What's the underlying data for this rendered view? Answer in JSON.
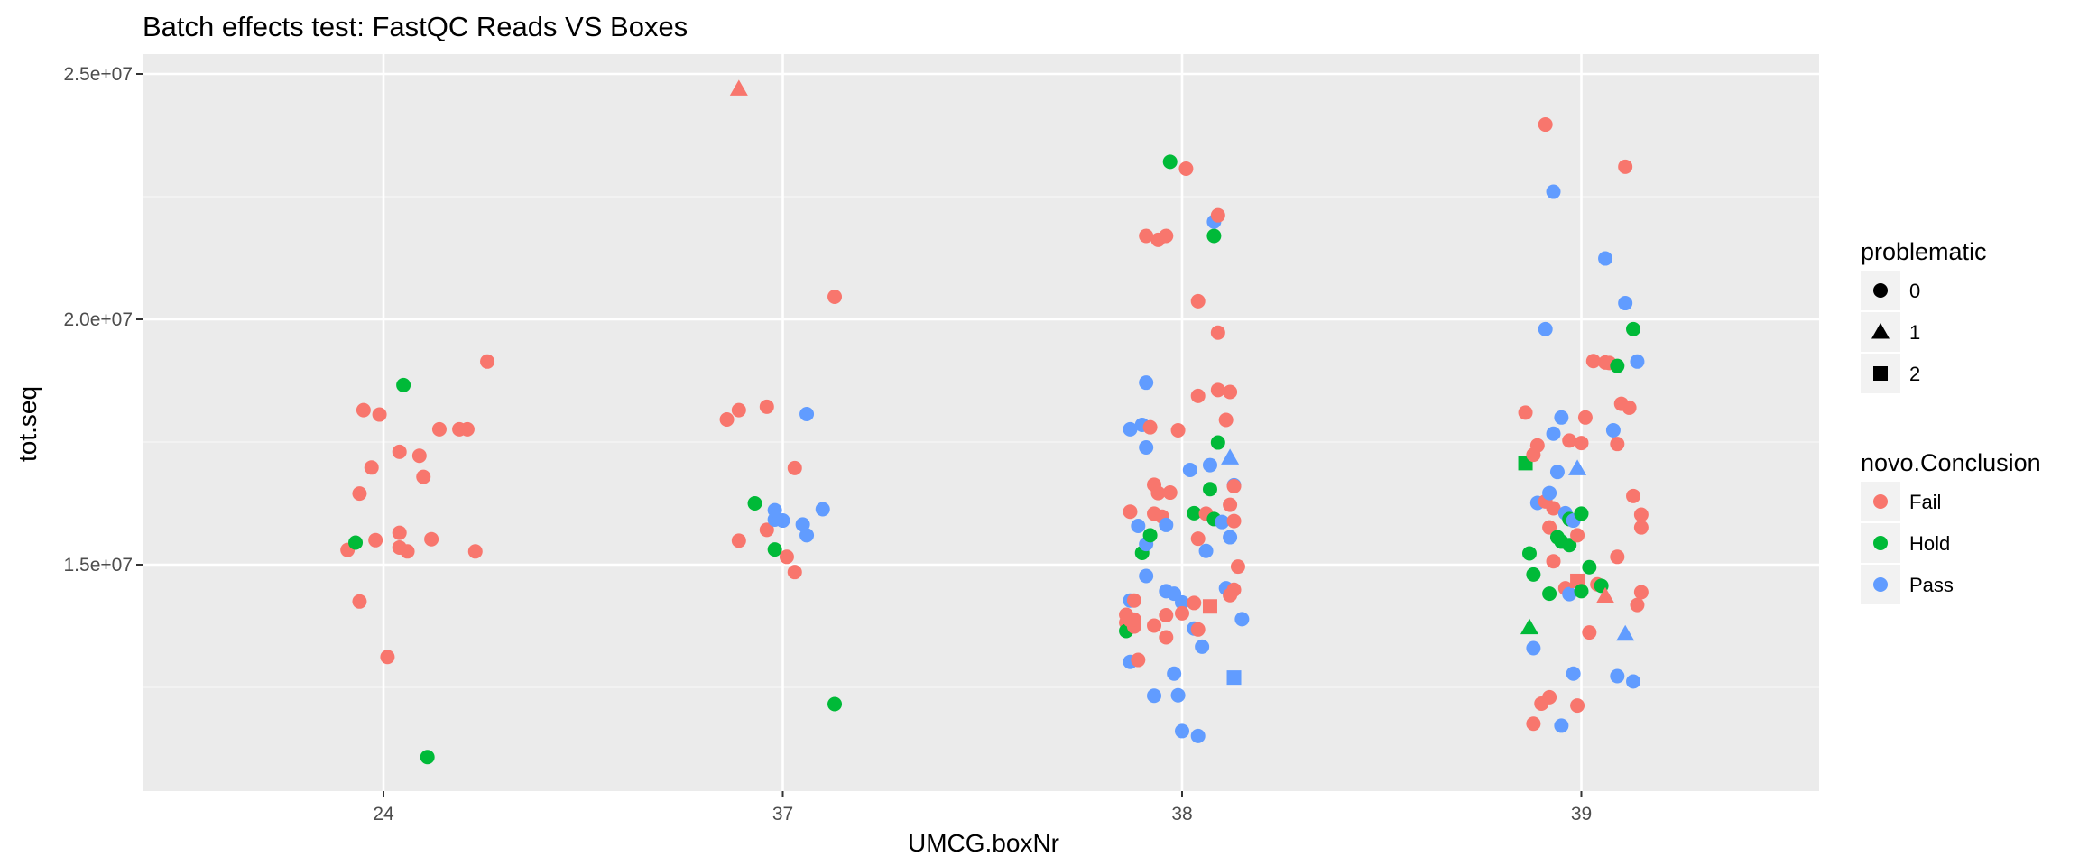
{
  "chart_data": {
    "type": "scatter",
    "title": "Batch effects test: FastQC Reads VS Boxes",
    "xlabel": "UMCG.boxNr",
    "ylabel": "tot.seq",
    "categories": [
      "24",
      "37",
      "38",
      "39"
    ],
    "ylim": [
      10500000,
      25400000
    ],
    "yticks": [
      15000000,
      20000000,
      25000000
    ],
    "ytick_labels": [
      "1.5e+07",
      "2.0e+07",
      "2.5e+07"
    ],
    "grid": true,
    "colors": {
      "Fail": "#F8766D",
      "Hold": "#00BA38",
      "Pass": "#619CFF"
    },
    "legend": {
      "position": "right",
      "shape_title": "problematic",
      "shape_entries": [
        {
          "label": "0",
          "shape": "circle"
        },
        {
          "label": "1",
          "shape": "triangle"
        },
        {
          "label": "2",
          "shape": "square"
        }
      ],
      "color_title": "novo.Conclusion",
      "color_entries": [
        "Fail",
        "Hold",
        "Pass"
      ]
    },
    "points": [
      {
        "x": 23.91,
        "y": 15300000,
        "c": "Fail",
        "p": 0
      },
      {
        "x": 23.93,
        "y": 15450000,
        "c": "Hold",
        "p": 0
      },
      {
        "x": 23.94,
        "y": 14250000,
        "c": "Fail",
        "p": 0
      },
      {
        "x": 23.94,
        "y": 16450000,
        "c": "Fail",
        "p": 0
      },
      {
        "x": 23.95,
        "y": 18150000,
        "c": "Fail",
        "p": 0
      },
      {
        "x": 23.97,
        "y": 16980000,
        "c": "Fail",
        "p": 0
      },
      {
        "x": 23.98,
        "y": 15500000,
        "c": "Fail",
        "p": 0
      },
      {
        "x": 23.99,
        "y": 18060000,
        "c": "Fail",
        "p": 0
      },
      {
        "x": 24.01,
        "y": 13120000,
        "c": "Fail",
        "p": 0
      },
      {
        "x": 24.04,
        "y": 17300000,
        "c": "Fail",
        "p": 0
      },
      {
        "x": 24.04,
        "y": 15350000,
        "c": "Fail",
        "p": 0
      },
      {
        "x": 24.04,
        "y": 15650000,
        "c": "Fail",
        "p": 0
      },
      {
        "x": 24.05,
        "y": 18660000,
        "c": "Hold",
        "p": 0
      },
      {
        "x": 24.06,
        "y": 15270000,
        "c": "Fail",
        "p": 0
      },
      {
        "x": 24.09,
        "y": 17220000,
        "c": "Fail",
        "p": 0
      },
      {
        "x": 24.1,
        "y": 16790000,
        "c": "Fail",
        "p": 0
      },
      {
        "x": 24.11,
        "y": 11080000,
        "c": "Hold",
        "p": 0
      },
      {
        "x": 24.12,
        "y": 15520000,
        "c": "Fail",
        "p": 0
      },
      {
        "x": 24.14,
        "y": 17760000,
        "c": "Fail",
        "p": 0
      },
      {
        "x": 24.19,
        "y": 17760000,
        "c": "Fail",
        "p": 0
      },
      {
        "x": 24.21,
        "y": 17760000,
        "c": "Fail",
        "p": 0
      },
      {
        "x": 24.23,
        "y": 15270000,
        "c": "Fail",
        "p": 0
      },
      {
        "x": 24.26,
        "y": 19140000,
        "c": "Fail",
        "p": 0
      },
      {
        "x": 36.86,
        "y": 17960000,
        "c": "Fail",
        "p": 0
      },
      {
        "x": 36.89,
        "y": 15490000,
        "c": "Fail",
        "p": 0
      },
      {
        "x": 36.89,
        "y": 18150000,
        "c": "Fail",
        "p": 0
      },
      {
        "x": 36.89,
        "y": 24700000,
        "c": "Fail",
        "p": 1
      },
      {
        "x": 36.93,
        "y": 16250000,
        "c": "Hold",
        "p": 0
      },
      {
        "x": 36.96,
        "y": 15710000,
        "c": "Fail",
        "p": 0
      },
      {
        "x": 36.96,
        "y": 18220000,
        "c": "Fail",
        "p": 0
      },
      {
        "x": 36.98,
        "y": 15920000,
        "c": "Pass",
        "p": 0
      },
      {
        "x": 36.98,
        "y": 16110000,
        "c": "Pass",
        "p": 0
      },
      {
        "x": 36.98,
        "y": 15310000,
        "c": "Hold",
        "p": 0
      },
      {
        "x": 37.0,
        "y": 15900000,
        "c": "Pass",
        "p": 0
      },
      {
        "x": 37.01,
        "y": 15160000,
        "c": "Fail",
        "p": 0
      },
      {
        "x": 37.03,
        "y": 14850000,
        "c": "Fail",
        "p": 0
      },
      {
        "x": 37.03,
        "y": 16970000,
        "c": "Fail",
        "p": 0
      },
      {
        "x": 37.05,
        "y": 15820000,
        "c": "Pass",
        "p": 0
      },
      {
        "x": 37.06,
        "y": 15600000,
        "c": "Pass",
        "p": 0
      },
      {
        "x": 37.06,
        "y": 18070000,
        "c": "Pass",
        "p": 0
      },
      {
        "x": 37.1,
        "y": 16130000,
        "c": "Pass",
        "p": 0
      },
      {
        "x": 37.13,
        "y": 20460000,
        "c": "Fail",
        "p": 0
      },
      {
        "x": 37.13,
        "y": 12160000,
        "c": "Hold",
        "p": 0
      },
      {
        "x": 37.86,
        "y": 13980000,
        "c": "Fail",
        "p": 0
      },
      {
        "x": 37.86,
        "y": 13820000,
        "c": "Fail",
        "p": 0
      },
      {
        "x": 37.86,
        "y": 13650000,
        "c": "Hold",
        "p": 0
      },
      {
        "x": 37.87,
        "y": 16080000,
        "c": "Fail",
        "p": 0
      },
      {
        "x": 37.87,
        "y": 13870000,
        "c": "Fail",
        "p": 0
      },
      {
        "x": 37.87,
        "y": 14270000,
        "c": "Pass",
        "p": 0
      },
      {
        "x": 37.87,
        "y": 13020000,
        "c": "Pass",
        "p": 0
      },
      {
        "x": 37.87,
        "y": 17760000,
        "c": "Pass",
        "p": 0
      },
      {
        "x": 37.88,
        "y": 13740000,
        "c": "Fail",
        "p": 0
      },
      {
        "x": 37.88,
        "y": 13880000,
        "c": "Fail",
        "p": 0
      },
      {
        "x": 37.88,
        "y": 14270000,
        "c": "Fail",
        "p": 0
      },
      {
        "x": 37.89,
        "y": 13060000,
        "c": "Fail",
        "p": 0
      },
      {
        "x": 37.89,
        "y": 15790000,
        "c": "Pass",
        "p": 0
      },
      {
        "x": 37.9,
        "y": 15240000,
        "c": "Hold",
        "p": 0
      },
      {
        "x": 37.9,
        "y": 17850000,
        "c": "Pass",
        "p": 0
      },
      {
        "x": 37.91,
        "y": 18710000,
        "c": "Pass",
        "p": 0
      },
      {
        "x": 37.91,
        "y": 17390000,
        "c": "Pass",
        "p": 0
      },
      {
        "x": 37.91,
        "y": 15420000,
        "c": "Pass",
        "p": 0
      },
      {
        "x": 37.91,
        "y": 14770000,
        "c": "Pass",
        "p": 0
      },
      {
        "x": 37.91,
        "y": 21700000,
        "c": "Fail",
        "p": 0
      },
      {
        "x": 37.92,
        "y": 15600000,
        "c": "Hold",
        "p": 0
      },
      {
        "x": 37.92,
        "y": 17800000,
        "c": "Fail",
        "p": 0
      },
      {
        "x": 37.93,
        "y": 16040000,
        "c": "Fail",
        "p": 0
      },
      {
        "x": 37.93,
        "y": 16630000,
        "c": "Fail",
        "p": 0
      },
      {
        "x": 37.93,
        "y": 12330000,
        "c": "Pass",
        "p": 0
      },
      {
        "x": 37.93,
        "y": 13760000,
        "c": "Fail",
        "p": 0
      },
      {
        "x": 37.94,
        "y": 21620000,
        "c": "Fail",
        "p": 0
      },
      {
        "x": 37.94,
        "y": 16460000,
        "c": "Fail",
        "p": 0
      },
      {
        "x": 37.95,
        "y": 15980000,
        "c": "Fail",
        "p": 0
      },
      {
        "x": 37.96,
        "y": 15810000,
        "c": "Pass",
        "p": 0
      },
      {
        "x": 37.96,
        "y": 14460000,
        "c": "Pass",
        "p": 0
      },
      {
        "x": 37.96,
        "y": 13970000,
        "c": "Fail",
        "p": 0
      },
      {
        "x": 37.96,
        "y": 13520000,
        "c": "Fail",
        "p": 0
      },
      {
        "x": 37.96,
        "y": 21700000,
        "c": "Fail",
        "p": 0
      },
      {
        "x": 37.97,
        "y": 23210000,
        "c": "Hold",
        "p": 0
      },
      {
        "x": 37.97,
        "y": 16470000,
        "c": "Fail",
        "p": 0
      },
      {
        "x": 37.98,
        "y": 12780000,
        "c": "Pass",
        "p": 0
      },
      {
        "x": 37.98,
        "y": 14410000,
        "c": "Pass",
        "p": 0
      },
      {
        "x": 37.99,
        "y": 17740000,
        "c": "Fail",
        "p": 0
      },
      {
        "x": 37.99,
        "y": 12340000,
        "c": "Pass",
        "p": 0
      },
      {
        "x": 38.0,
        "y": 14230000,
        "c": "Pass",
        "p": 0
      },
      {
        "x": 38.0,
        "y": 14010000,
        "c": "Fail",
        "p": 0
      },
      {
        "x": 38.0,
        "y": 11610000,
        "c": "Pass",
        "p": 0
      },
      {
        "x": 38.01,
        "y": 23070000,
        "c": "Fail",
        "p": 0
      },
      {
        "x": 38.02,
        "y": 16930000,
        "c": "Pass",
        "p": 0
      },
      {
        "x": 38.03,
        "y": 14220000,
        "c": "Fail",
        "p": 0
      },
      {
        "x": 38.03,
        "y": 13700000,
        "c": "Pass",
        "p": 0
      },
      {
        "x": 38.03,
        "y": 16050000,
        "c": "Hold",
        "p": 0
      },
      {
        "x": 38.04,
        "y": 20370000,
        "c": "Fail",
        "p": 0
      },
      {
        "x": 38.04,
        "y": 13680000,
        "c": "Fail",
        "p": 0
      },
      {
        "x": 38.04,
        "y": 15530000,
        "c": "Fail",
        "p": 0
      },
      {
        "x": 38.04,
        "y": 11510000,
        "c": "Pass",
        "p": 0
      },
      {
        "x": 38.04,
        "y": 18440000,
        "c": "Fail",
        "p": 0
      },
      {
        "x": 38.05,
        "y": 13330000,
        "c": "Pass",
        "p": 0
      },
      {
        "x": 38.06,
        "y": 15280000,
        "c": "Pass",
        "p": 0
      },
      {
        "x": 38.06,
        "y": 16040000,
        "c": "Fail",
        "p": 0
      },
      {
        "x": 38.07,
        "y": 16540000,
        "c": "Hold",
        "p": 0
      },
      {
        "x": 38.07,
        "y": 17030000,
        "c": "Pass",
        "p": 0
      },
      {
        "x": 38.07,
        "y": 14150000,
        "c": "Fail",
        "p": 2
      },
      {
        "x": 38.08,
        "y": 21700000,
        "c": "Hold",
        "p": 0
      },
      {
        "x": 38.08,
        "y": 15930000,
        "c": "Hold",
        "p": 0
      },
      {
        "x": 38.08,
        "y": 21990000,
        "c": "Pass",
        "p": 0
      },
      {
        "x": 38.09,
        "y": 18560000,
        "c": "Fail",
        "p": 0
      },
      {
        "x": 38.09,
        "y": 22120000,
        "c": "Fail",
        "p": 0
      },
      {
        "x": 38.09,
        "y": 19730000,
        "c": "Fail",
        "p": 0
      },
      {
        "x": 38.09,
        "y": 17490000,
        "c": "Hold",
        "p": 0
      },
      {
        "x": 38.1,
        "y": 15870000,
        "c": "Pass",
        "p": 0
      },
      {
        "x": 38.11,
        "y": 14520000,
        "c": "Pass",
        "p": 0
      },
      {
        "x": 38.11,
        "y": 17950000,
        "c": "Fail",
        "p": 0
      },
      {
        "x": 38.12,
        "y": 15560000,
        "c": "Pass",
        "p": 0
      },
      {
        "x": 38.12,
        "y": 18520000,
        "c": "Fail",
        "p": 0
      },
      {
        "x": 38.12,
        "y": 16220000,
        "c": "Fail",
        "p": 0
      },
      {
        "x": 38.12,
        "y": 14380000,
        "c": "Fail",
        "p": 0
      },
      {
        "x": 38.12,
        "y": 17180000,
        "c": "Pass",
        "p": 1
      },
      {
        "x": 38.13,
        "y": 16620000,
        "c": "Pass",
        "p": 0
      },
      {
        "x": 38.13,
        "y": 16600000,
        "c": "Fail",
        "p": 0
      },
      {
        "x": 38.13,
        "y": 15890000,
        "c": "Fail",
        "p": 0
      },
      {
        "x": 38.13,
        "y": 14490000,
        "c": "Fail",
        "p": 0
      },
      {
        "x": 38.13,
        "y": 12700000,
        "c": "Pass",
        "p": 2
      },
      {
        "x": 38.14,
        "y": 14960000,
        "c": "Fail",
        "p": 0
      },
      {
        "x": 38.15,
        "y": 13890000,
        "c": "Pass",
        "p": 0
      },
      {
        "x": 38.86,
        "y": 18100000,
        "c": "Fail",
        "p": 0
      },
      {
        "x": 38.86,
        "y": 17070000,
        "c": "Hold",
        "p": 2
      },
      {
        "x": 38.87,
        "y": 15230000,
        "c": "Hold",
        "p": 0
      },
      {
        "x": 38.87,
        "y": 13720000,
        "c": "Hold",
        "p": 1
      },
      {
        "x": 38.88,
        "y": 17240000,
        "c": "Fail",
        "p": 0
      },
      {
        "x": 38.88,
        "y": 14800000,
        "c": "Hold",
        "p": 0
      },
      {
        "x": 38.88,
        "y": 13300000,
        "c": "Pass",
        "p": 0
      },
      {
        "x": 38.88,
        "y": 11760000,
        "c": "Fail",
        "p": 0
      },
      {
        "x": 38.89,
        "y": 17430000,
        "c": "Fail",
        "p": 0
      },
      {
        "x": 38.89,
        "y": 16260000,
        "c": "Pass",
        "p": 0
      },
      {
        "x": 38.9,
        "y": 12170000,
        "c": "Fail",
        "p": 0
      },
      {
        "x": 38.91,
        "y": 16290000,
        "c": "Fail",
        "p": 0
      },
      {
        "x": 38.91,
        "y": 23970000,
        "c": "Fail",
        "p": 0
      },
      {
        "x": 38.91,
        "y": 19800000,
        "c": "Pass",
        "p": 0
      },
      {
        "x": 38.92,
        "y": 12300000,
        "c": "Fail",
        "p": 0
      },
      {
        "x": 38.92,
        "y": 16460000,
        "c": "Pass",
        "p": 0
      },
      {
        "x": 38.92,
        "y": 15760000,
        "c": "Fail",
        "p": 0
      },
      {
        "x": 38.92,
        "y": 14410000,
        "c": "Hold",
        "p": 0
      },
      {
        "x": 38.93,
        "y": 22600000,
        "c": "Pass",
        "p": 0
      },
      {
        "x": 38.93,
        "y": 16150000,
        "c": "Fail",
        "p": 0
      },
      {
        "x": 38.93,
        "y": 15070000,
        "c": "Fail",
        "p": 0
      },
      {
        "x": 38.93,
        "y": 17670000,
        "c": "Pass",
        "p": 0
      },
      {
        "x": 38.94,
        "y": 15560000,
        "c": "Hold",
        "p": 0
      },
      {
        "x": 38.94,
        "y": 16890000,
        "c": "Pass",
        "p": 0
      },
      {
        "x": 38.95,
        "y": 15470000,
        "c": "Hold",
        "p": 0
      },
      {
        "x": 38.95,
        "y": 18000000,
        "c": "Pass",
        "p": 0
      },
      {
        "x": 38.95,
        "y": 11720000,
        "c": "Pass",
        "p": 0
      },
      {
        "x": 38.96,
        "y": 14520000,
        "c": "Fail",
        "p": 0
      },
      {
        "x": 38.96,
        "y": 16050000,
        "c": "Pass",
        "p": 0
      },
      {
        "x": 38.97,
        "y": 17530000,
        "c": "Fail",
        "p": 0
      },
      {
        "x": 38.97,
        "y": 15930000,
        "c": "Hold",
        "p": 0
      },
      {
        "x": 38.97,
        "y": 15400000,
        "c": "Hold",
        "p": 0
      },
      {
        "x": 38.97,
        "y": 14400000,
        "c": "Pass",
        "p": 0
      },
      {
        "x": 38.98,
        "y": 15900000,
        "c": "Pass",
        "p": 0
      },
      {
        "x": 38.98,
        "y": 12780000,
        "c": "Pass",
        "p": 0
      },
      {
        "x": 38.99,
        "y": 16960000,
        "c": "Pass",
        "p": 1
      },
      {
        "x": 38.99,
        "y": 15600000,
        "c": "Fail",
        "p": 0
      },
      {
        "x": 38.99,
        "y": 12130000,
        "c": "Fail",
        "p": 0
      },
      {
        "x": 38.99,
        "y": 14670000,
        "c": "Fail",
        "p": 2
      },
      {
        "x": 39.0,
        "y": 17480000,
        "c": "Fail",
        "p": 0
      },
      {
        "x": 39.0,
        "y": 16040000,
        "c": "Hold",
        "p": 0
      },
      {
        "x": 39.0,
        "y": 14460000,
        "c": "Hold",
        "p": 0
      },
      {
        "x": 39.01,
        "y": 18000000,
        "c": "Fail",
        "p": 0
      },
      {
        "x": 39.02,
        "y": 13620000,
        "c": "Fail",
        "p": 0
      },
      {
        "x": 39.02,
        "y": 14950000,
        "c": "Hold",
        "p": 0
      },
      {
        "x": 39.03,
        "y": 19150000,
        "c": "Fail",
        "p": 0
      },
      {
        "x": 39.04,
        "y": 14600000,
        "c": "Fail",
        "p": 0
      },
      {
        "x": 39.05,
        "y": 14570000,
        "c": "Hold",
        "p": 0
      },
      {
        "x": 39.06,
        "y": 19120000,
        "c": "Fail",
        "p": 0
      },
      {
        "x": 39.06,
        "y": 21240000,
        "c": "Pass",
        "p": 0
      },
      {
        "x": 39.06,
        "y": 14360000,
        "c": "Fail",
        "p": 1
      },
      {
        "x": 39.07,
        "y": 19110000,
        "c": "Fail",
        "p": 0
      },
      {
        "x": 39.08,
        "y": 17740000,
        "c": "Pass",
        "p": 0
      },
      {
        "x": 39.09,
        "y": 19050000,
        "c": "Hold",
        "p": 0
      },
      {
        "x": 39.09,
        "y": 17460000,
        "c": "Fail",
        "p": 0
      },
      {
        "x": 39.09,
        "y": 15160000,
        "c": "Fail",
        "p": 0
      },
      {
        "x": 39.09,
        "y": 12730000,
        "c": "Pass",
        "p": 0
      },
      {
        "x": 39.1,
        "y": 18280000,
        "c": "Fail",
        "p": 0
      },
      {
        "x": 39.11,
        "y": 20330000,
        "c": "Pass",
        "p": 0
      },
      {
        "x": 39.11,
        "y": 13590000,
        "c": "Pass",
        "p": 1
      },
      {
        "x": 39.11,
        "y": 23110000,
        "c": "Fail",
        "p": 0
      },
      {
        "x": 39.12,
        "y": 18200000,
        "c": "Fail",
        "p": 0
      },
      {
        "x": 39.13,
        "y": 19800000,
        "c": "Hold",
        "p": 0
      },
      {
        "x": 39.13,
        "y": 16400000,
        "c": "Fail",
        "p": 0
      },
      {
        "x": 39.13,
        "y": 12620000,
        "c": "Pass",
        "p": 0
      },
      {
        "x": 39.14,
        "y": 19140000,
        "c": "Pass",
        "p": 0
      },
      {
        "x": 39.14,
        "y": 14180000,
        "c": "Fail",
        "p": 0
      },
      {
        "x": 39.15,
        "y": 16020000,
        "c": "Fail",
        "p": 0
      },
      {
        "x": 39.15,
        "y": 15760000,
        "c": "Fail",
        "p": 0
      },
      {
        "x": 39.15,
        "y": 14440000,
        "c": "Fail",
        "p": 0
      }
    ]
  }
}
